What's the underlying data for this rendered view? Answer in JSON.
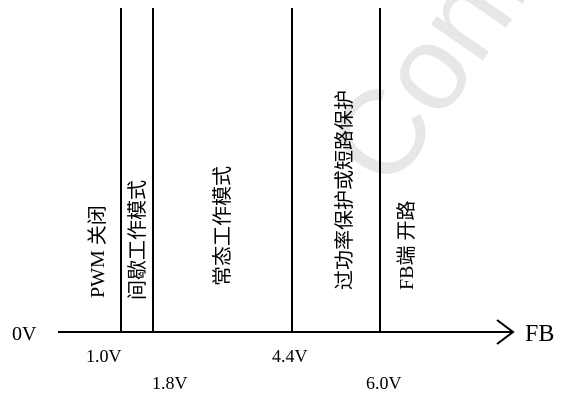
{
  "watermark": "Confidential to M",
  "axis": {
    "origin_label": "0V",
    "end_label": "FB"
  },
  "thresholds": [
    {
      "value": "1.0V"
    },
    {
      "value": "1.8V"
    },
    {
      "value": "4.4V"
    },
    {
      "value": "6.0V"
    }
  ],
  "regions": [
    {
      "label": "PWM 关闭"
    },
    {
      "label": "间歇工作模式"
    },
    {
      "label": "常态工作模式"
    },
    {
      "label": "过功率保护或短路保护"
    },
    {
      "label": "FB端 开路"
    }
  ],
  "colors": {
    "line": "#000000",
    "watermark": "#e7e7e7"
  }
}
